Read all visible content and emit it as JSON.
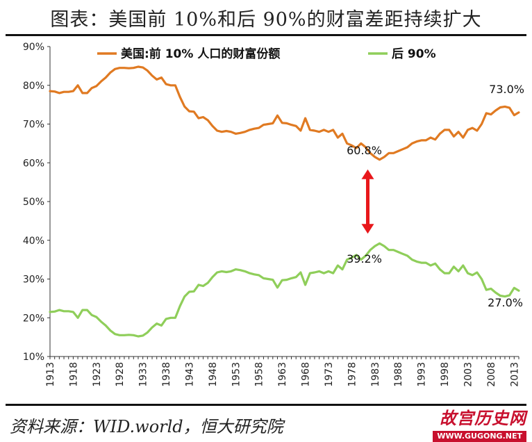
{
  "title": "图表：美国前 10%和后 90%的财富差距持续扩大",
  "source": "资料来源：WID.world，恒大研究院",
  "watermark": {
    "main": "故宫历史网",
    "sub": "WWW.GUGONG.NET"
  },
  "colors": {
    "top10": "#e07a22",
    "bottom90": "#8fce5a",
    "arrow": "#e8171b"
  },
  "chart_data": {
    "type": "line",
    "x": [
      1913,
      1914,
      1915,
      1916,
      1917,
      1918,
      1919,
      1920,
      1921,
      1922,
      1923,
      1924,
      1925,
      1926,
      1927,
      1928,
      1929,
      1930,
      1931,
      1932,
      1933,
      1934,
      1935,
      1936,
      1937,
      1938,
      1939,
      1940,
      1941,
      1942,
      1943,
      1944,
      1945,
      1946,
      1947,
      1948,
      1949,
      1950,
      1951,
      1952,
      1953,
      1954,
      1955,
      1956,
      1957,
      1958,
      1959,
      1960,
      1961,
      1962,
      1963,
      1964,
      1965,
      1966,
      1967,
      1968,
      1969,
      1970,
      1971,
      1972,
      1973,
      1974,
      1975,
      1976,
      1977,
      1978,
      1979,
      1980,
      1981,
      1982,
      1983,
      1984,
      1985,
      1986,
      1987,
      1988,
      1989,
      1990,
      1991,
      1992,
      1993,
      1994,
      1995,
      1996,
      1997,
      1998,
      1999,
      2000,
      2001,
      2002,
      2003,
      2004,
      2005,
      2006,
      2007,
      2008,
      2009,
      2010,
      2011,
      2012,
      2013,
      2014
    ],
    "series": [
      {
        "name": "美国:前 10% 人口的财富份额",
        "values": [
          78.5,
          78.4,
          78.0,
          78.3,
          78.3,
          78.5,
          80.0,
          78.0,
          78.0,
          79.3,
          79.8,
          81.0,
          82.0,
          83.3,
          84.2,
          84.5,
          84.5,
          84.4,
          84.5,
          84.8,
          84.6,
          83.8,
          82.5,
          81.5,
          82.0,
          80.3,
          80.0,
          80.0,
          77.0,
          74.5,
          73.3,
          73.2,
          71.5,
          71.8,
          71.0,
          69.5,
          68.3,
          68.0,
          68.2,
          68.0,
          67.5,
          67.7,
          68.0,
          68.5,
          68.8,
          69.0,
          69.8,
          70.0,
          70.2,
          72.2,
          70.3,
          70.2,
          69.8,
          69.5,
          68.3,
          71.5,
          68.5,
          68.3,
          68.0,
          68.5,
          68.0,
          68.5,
          66.5,
          67.5,
          65.0,
          64.5,
          63.8,
          65.0,
          64.0,
          62.5,
          61.5,
          60.8,
          61.5,
          62.5,
          62.5,
          63.0,
          63.5,
          64.0,
          65.0,
          65.5,
          65.8,
          65.8,
          66.5,
          66.0,
          67.5,
          68.5,
          68.5,
          66.8,
          68.0,
          66.5,
          68.5,
          69.0,
          68.3,
          70.0,
          72.8,
          72.5,
          73.5,
          74.3,
          74.5,
          74.2,
          72.3,
          73.0
        ]
      },
      {
        "name": "后 90%",
        "values": [
          21.5,
          21.6,
          22.0,
          21.7,
          21.7,
          21.5,
          20.0,
          22.0,
          22.0,
          20.7,
          20.2,
          19.0,
          18.0,
          16.7,
          15.8,
          15.5,
          15.5,
          15.6,
          15.5,
          15.2,
          15.4,
          16.2,
          17.5,
          18.5,
          18.0,
          19.7,
          20.0,
          20.0,
          23.0,
          25.5,
          26.7,
          26.8,
          28.5,
          28.2,
          29.0,
          30.5,
          31.7,
          32.0,
          31.8,
          32.0,
          32.5,
          32.3,
          32.0,
          31.5,
          31.2,
          31.0,
          30.2,
          30.0,
          29.8,
          27.8,
          29.7,
          29.8,
          30.2,
          30.5,
          31.7,
          28.5,
          31.5,
          31.7,
          32.0,
          31.5,
          32.0,
          31.5,
          33.5,
          32.5,
          35.0,
          35.5,
          36.2,
          35.0,
          36.0,
          37.5,
          38.5,
          39.2,
          38.5,
          37.5,
          37.5,
          37.0,
          36.5,
          36.0,
          35.0,
          34.5,
          34.2,
          34.2,
          33.5,
          34.0,
          32.5,
          31.5,
          31.5,
          33.2,
          32.0,
          33.5,
          31.5,
          31.0,
          31.7,
          30.0,
          27.2,
          27.5,
          26.5,
          25.7,
          25.5,
          25.8,
          27.7,
          27.0
        ]
      }
    ],
    "x_tick_labels": [
      "1913",
      "1918",
      "1923",
      "1928",
      "1933",
      "1938",
      "1943",
      "1948",
      "1953",
      "1958",
      "1963",
      "1968",
      "1973",
      "1978",
      "1983",
      "1988",
      "1993",
      "1998",
      "2003",
      "2008",
      "2013"
    ],
    "y_tick_labels": [
      "10%",
      "20%",
      "30%",
      "40%",
      "50%",
      "60%",
      "70%",
      "80%",
      "90%"
    ],
    "ylim": [
      10,
      90
    ],
    "xlabel": "",
    "ylabel": "",
    "legend": {
      "placement": "top",
      "items": [
        "美国:前 10% 人口的财富份额",
        "后 90%"
      ]
    },
    "annotations": [
      {
        "text": "73.0%",
        "x": 2014,
        "y": 73.0,
        "series": 0
      },
      {
        "text": "60.8%",
        "x": 1984,
        "y": 60.8,
        "series": 0
      },
      {
        "text": "39.2%",
        "x": 1984,
        "y": 39.2,
        "series": 1
      },
      {
        "text": "27.0%",
        "x": 2014,
        "y": 27.0,
        "series": 1
      }
    ],
    "arrow": {
      "x": 1984,
      "from": 60.8,
      "to": 39.2
    },
    "grid": false
  }
}
